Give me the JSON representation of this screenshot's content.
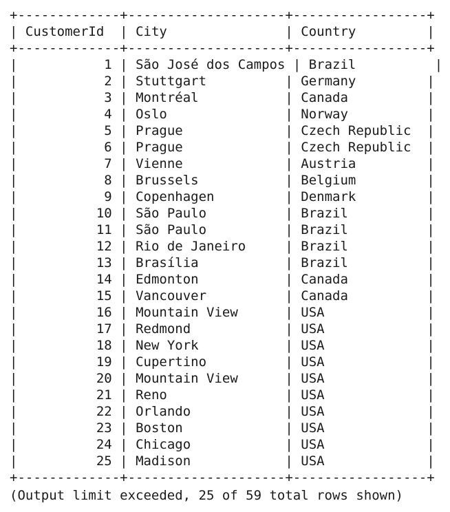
{
  "table": {
    "border": "+-------------+--------------------+-----------------+",
    "headers": [
      "CustomerId",
      "City",
      "Country"
    ],
    "rows": [
      [
        "1",
        "São José dos Campos",
        "Brazil"
      ],
      [
        "2",
        "Stuttgart",
        "Germany"
      ],
      [
        "3",
        "Montréal",
        "Canada"
      ],
      [
        "4",
        "Oslo",
        "Norway"
      ],
      [
        "5",
        "Prague",
        "Czech Republic"
      ],
      [
        "6",
        "Prague",
        "Czech Republic"
      ],
      [
        "7",
        "Vienne",
        "Austria"
      ],
      [
        "8",
        "Brussels",
        "Belgium"
      ],
      [
        "9",
        "Copenhagen",
        "Denmark"
      ],
      [
        "10",
        "São Paulo",
        "Brazil"
      ],
      [
        "11",
        "São Paulo",
        "Brazil"
      ],
      [
        "12",
        "Rio de Janeiro",
        "Brazil"
      ],
      [
        "13",
        "Brasília",
        "Brazil"
      ],
      [
        "14",
        "Edmonton",
        "Canada"
      ],
      [
        "15",
        "Vancouver",
        "Canada"
      ],
      [
        "16",
        "Mountain View",
        "USA"
      ],
      [
        "17",
        "Redmond",
        "USA"
      ],
      [
        "18",
        "New York",
        "USA"
      ],
      [
        "19",
        "Cupertino",
        "USA"
      ],
      [
        "20",
        "Mountain View",
        "USA"
      ],
      [
        "21",
        "Reno",
        "USA"
      ],
      [
        "22",
        "Orlando",
        "USA"
      ],
      [
        "23",
        "Boston",
        "USA"
      ],
      [
        "24",
        "Chicago",
        "USA"
      ],
      [
        "25",
        "Madison",
        "USA"
      ]
    ]
  },
  "footer": "(Output limit exceeded, 25 of 59 total rows shown)"
}
